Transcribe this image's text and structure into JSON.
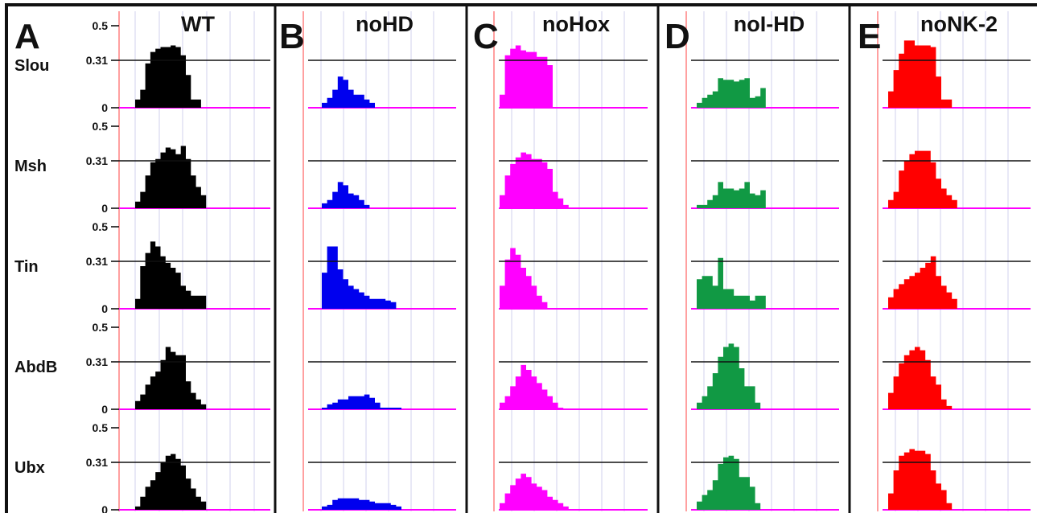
{
  "chart_data": {
    "type": "area",
    "grid": true,
    "ylim": [
      0,
      0.5
    ],
    "y_ticks": [
      "0.5",
      "0.31",
      "0"
    ],
    "reference_line": 0.31,
    "colors": {
      "WT": "#000000",
      "noHD": "#0000ee",
      "noHox": "#ff00ff",
      "noI-HD": "#119944",
      "noNK-2": "#ff0000",
      "baseline": "#ff00ff",
      "left_axis": "#ff8888",
      "grid": "#d2d2ee",
      "frame": "#111111"
    },
    "rows": [
      "Slou",
      "Msh",
      "Tin",
      "AbdB",
      "Ubx"
    ],
    "panels": [
      {
        "letter": "A",
        "title": "WT",
        "histograms": [
          [
            0.05,
            0.11,
            0.27,
            0.34,
            0.36,
            0.37,
            0.37,
            0.38,
            0.37,
            0.32,
            0.2,
            0.05,
            0.05,
            0,
            0,
            0,
            0,
            0
          ],
          [
            0.04,
            0.1,
            0.2,
            0.28,
            0.3,
            0.34,
            0.37,
            0.36,
            0.33,
            0.38,
            0.3,
            0.2,
            0.13,
            0.08,
            0,
            0,
            0,
            0
          ],
          [
            0.06,
            0.26,
            0.34,
            0.41,
            0.38,
            0.32,
            0.28,
            0.25,
            0.22,
            0.14,
            0.11,
            0.08,
            0.08,
            0.08,
            0,
            0,
            0,
            0
          ],
          [
            0.05,
            0.09,
            0.15,
            0.2,
            0.23,
            0.3,
            0.38,
            0.35,
            0.33,
            0.33,
            0.17,
            0.1,
            0.06,
            0.03,
            0,
            0,
            0,
            0
          ],
          [
            0.02,
            0.08,
            0.14,
            0.18,
            0.23,
            0.29,
            0.33,
            0.34,
            0.31,
            0.27,
            0.19,
            0.13,
            0.08,
            0.05,
            0,
            0,
            0,
            0
          ]
        ]
      },
      {
        "letter": "B",
        "title": "noHD",
        "histograms": [
          [
            0.03,
            0.06,
            0.11,
            0.19,
            0.17,
            0.11,
            0.08,
            0.08,
            0.05,
            0.03,
            0,
            0,
            0,
            0,
            0,
            0,
            0,
            0
          ],
          [
            0.03,
            0.05,
            0.1,
            0.16,
            0.14,
            0.09,
            0.08,
            0.05,
            0.02,
            0,
            0,
            0,
            0,
            0,
            0,
            0,
            0,
            0
          ],
          [
            0.22,
            0.38,
            0.38,
            0.24,
            0.18,
            0.14,
            0.12,
            0.1,
            0.08,
            0.06,
            0.06,
            0.06,
            0.05,
            0.04,
            0,
            0,
            0,
            0
          ],
          [
            0.01,
            0.03,
            0.04,
            0.06,
            0.06,
            0.08,
            0.08,
            0.08,
            0.09,
            0.07,
            0.04,
            0.01,
            0.01,
            0.01,
            0.01,
            0,
            0,
            0
          ],
          [
            0.02,
            0.03,
            0.06,
            0.07,
            0.07,
            0.07,
            0.07,
            0.06,
            0.06,
            0.05,
            0.04,
            0.04,
            0.04,
            0.03,
            0.02,
            0,
            0,
            0
          ]
        ]
      },
      {
        "letter": "C",
        "title": "noHox",
        "histograms": [
          [
            0.08,
            0.32,
            0.36,
            0.38,
            0.35,
            0.34,
            0.34,
            0.31,
            0.31,
            0.26,
            0,
            0,
            0,
            0,
            0,
            0,
            0,
            0
          ],
          [
            0.08,
            0.2,
            0.27,
            0.31,
            0.34,
            0.33,
            0.3,
            0.3,
            0.28,
            0.24,
            0.1,
            0.06,
            0.02,
            0,
            0,
            0,
            0,
            0
          ],
          [
            0.14,
            0.3,
            0.37,
            0.33,
            0.25,
            0.2,
            0.14,
            0.08,
            0.04,
            0,
            0,
            0,
            0,
            0,
            0,
            0,
            0,
            0
          ],
          [
            0.04,
            0.08,
            0.14,
            0.2,
            0.27,
            0.24,
            0.2,
            0.16,
            0.12,
            0.08,
            0.04,
            0.01,
            0,
            0,
            0,
            0,
            0,
            0
          ],
          [
            0.04,
            0.1,
            0.15,
            0.19,
            0.22,
            0.2,
            0.16,
            0.14,
            0.12,
            0.08,
            0.06,
            0.04,
            0.02,
            0,
            0,
            0,
            0,
            0
          ]
        ]
      },
      {
        "letter": "D",
        "title": "noI-HD",
        "histograms": [
          [
            0.03,
            0.06,
            0.08,
            0.1,
            0.18,
            0.17,
            0.17,
            0.16,
            0.17,
            0.18,
            0.06,
            0.07,
            0.12,
            0,
            0,
            0,
            0,
            0
          ],
          [
            0.02,
            0.02,
            0.05,
            0.08,
            0.16,
            0.12,
            0.12,
            0.11,
            0.12,
            0.16,
            0.09,
            0.08,
            0.11,
            0,
            0,
            0,
            0,
            0
          ],
          [
            0.18,
            0.2,
            0.2,
            0.14,
            0.31,
            0.12,
            0.12,
            0.08,
            0.08,
            0.08,
            0.05,
            0.08,
            0.08,
            0,
            0,
            0,
            0,
            0
          ],
          [
            0.04,
            0.08,
            0.14,
            0.22,
            0.32,
            0.38,
            0.4,
            0.38,
            0.25,
            0.14,
            0.14,
            0.04,
            0,
            0,
            0,
            0,
            0,
            0
          ],
          [
            0.05,
            0.09,
            0.12,
            0.18,
            0.28,
            0.32,
            0.33,
            0.31,
            0.2,
            0.2,
            0.14,
            0.04,
            0,
            0,
            0,
            0,
            0,
            0
          ]
        ]
      },
      {
        "letter": "E",
        "title": "noNK-2",
        "histograms": [
          [
            0.1,
            0.23,
            0.33,
            0.41,
            0.41,
            0.38,
            0.38,
            0.38,
            0.37,
            0.19,
            0.05,
            0.05,
            0,
            0,
            0,
            0,
            0,
            0
          ],
          [
            0.05,
            0.1,
            0.23,
            0.29,
            0.33,
            0.35,
            0.35,
            0.35,
            0.28,
            0.18,
            0.12,
            0.08,
            0.05,
            0,
            0,
            0,
            0,
            0
          ],
          [
            0.07,
            0.12,
            0.15,
            0.18,
            0.2,
            0.22,
            0.25,
            0.28,
            0.32,
            0.2,
            0.14,
            0.1,
            0.06,
            0,
            0,
            0,
            0,
            0
          ],
          [
            0.1,
            0.2,
            0.28,
            0.33,
            0.36,
            0.38,
            0.36,
            0.3,
            0.2,
            0.15,
            0.06,
            0.02,
            0,
            0,
            0,
            0,
            0,
            0
          ],
          [
            0.1,
            0.24,
            0.33,
            0.35,
            0.37,
            0.36,
            0.36,
            0.34,
            0.24,
            0.16,
            0.12,
            0.04,
            0,
            0,
            0,
            0,
            0,
            0
          ]
        ]
      }
    ]
  }
}
